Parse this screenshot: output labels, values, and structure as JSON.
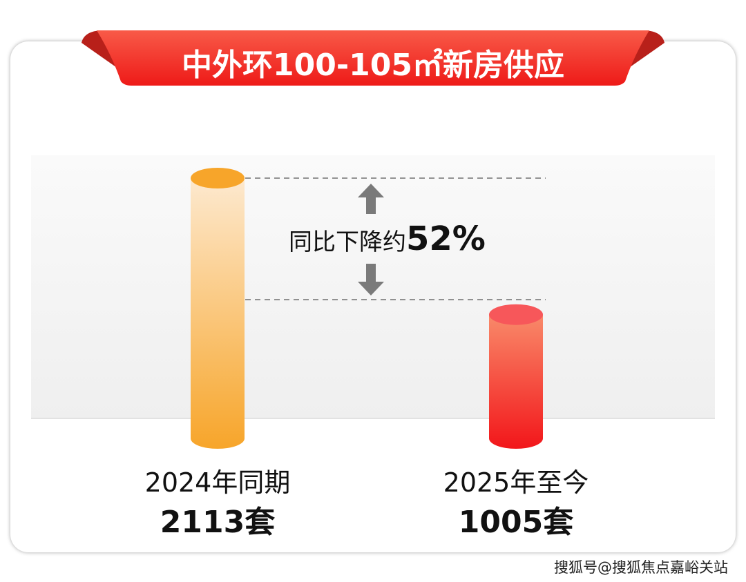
{
  "chart_data": {
    "type": "bar",
    "title": "中外环100-105㎡新房供应",
    "categories": [
      "2024年同期",
      "2025年至今"
    ],
    "values": [
      2113,
      1005
    ],
    "value_labels": [
      "2113套",
      "1005套"
    ],
    "unit": "套",
    "annotation": {
      "prefix": "同比下降约",
      "value": "52%"
    },
    "colors": [
      "#f7a52a",
      "#f2161a"
    ]
  },
  "watermark": "搜狐号@搜狐焦点嘉峪关站"
}
